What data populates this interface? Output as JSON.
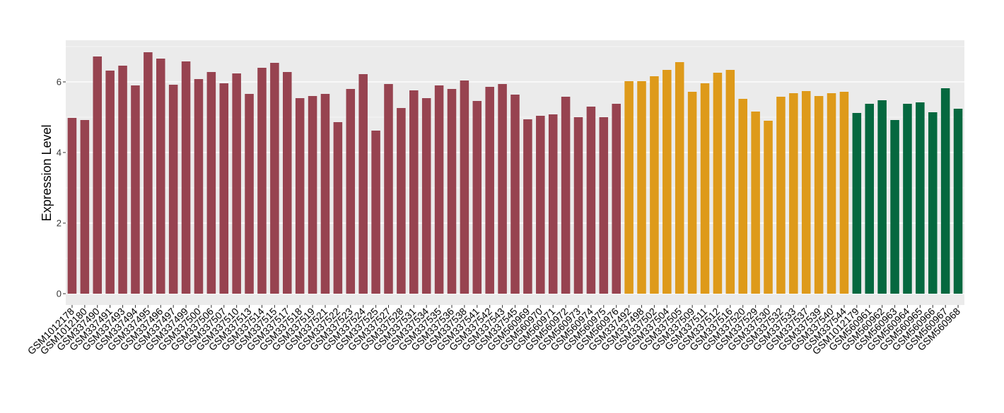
{
  "chart_data": {
    "type": "bar",
    "y_label": "Expression Level",
    "categories": [
      "GSM1012178",
      "GSM1012180",
      "GSM337490",
      "GSM337491",
      "GSM337493",
      "GSM337494",
      "GSM337495",
      "GSM337496",
      "GSM337497",
      "GSM337499",
      "GSM337500",
      "GSM337506",
      "GSM337507",
      "GSM337510",
      "GSM337513",
      "GSM337514",
      "GSM337515",
      "GSM337517",
      "GSM337518",
      "GSM337519",
      "GSM337521",
      "GSM337522",
      "GSM337523",
      "GSM337524",
      "GSM337525",
      "GSM337527",
      "GSM337528",
      "GSM337531",
      "GSM337534",
      "GSM337535",
      "GSM337536",
      "GSM337538",
      "GSM337541",
      "GSM337542",
      "GSM337543",
      "GSM337545",
      "GSM560969",
      "GSM560970",
      "GSM560971",
      "GSM560972",
      "GSM560973",
      "GSM560974",
      "GSM560975",
      "GSM560976",
      "GSM337492",
      "GSM337498",
      "GSM337502",
      "GSM337504",
      "GSM337505",
      "GSM337509",
      "GSM337511",
      "GSM337512",
      "GSM337516",
      "GSM337520",
      "GSM337529",
      "GSM337530",
      "GSM337532",
      "GSM337533",
      "GSM337537",
      "GSM337539",
      "GSM337540",
      "GSM337544",
      "GSM1012179",
      "GSM560961",
      "GSM560962",
      "GSM560963",
      "GSM560964",
      "GSM560965",
      "GSM560966",
      "GSM560967",
      "GSM560968"
    ],
    "values": [
      4.98,
      4.92,
      6.72,
      6.32,
      6.46,
      5.9,
      6.84,
      6.66,
      5.92,
      6.58,
      6.08,
      6.28,
      5.96,
      6.24,
      5.66,
      6.4,
      6.54,
      6.28,
      5.54,
      5.6,
      5.66,
      4.86,
      5.8,
      6.22,
      4.62,
      5.94,
      5.26,
      5.76,
      5.54,
      5.9,
      5.8,
      6.04,
      5.46,
      5.86,
      5.94,
      5.64,
      4.94,
      5.04,
      5.08,
      5.58,
      5.0,
      5.3,
      5.0,
      5.38,
      6.02,
      6.02,
      6.16,
      6.34,
      6.56,
      5.72,
      5.96,
      6.26,
      6.34,
      5.52,
      5.16,
      4.9,
      5.58,
      5.68,
      5.74,
      5.6,
      5.68,
      5.72,
      5.12,
      5.38,
      5.48,
      4.92,
      5.38,
      5.42,
      5.14,
      5.82,
      5.24
    ],
    "colors": [
      "#974350",
      "#974350",
      "#974350",
      "#974350",
      "#974350",
      "#974350",
      "#974350",
      "#974350",
      "#974350",
      "#974350",
      "#974350",
      "#974350",
      "#974350",
      "#974350",
      "#974350",
      "#974350",
      "#974350",
      "#974350",
      "#974350",
      "#974350",
      "#974350",
      "#974350",
      "#974350",
      "#974350",
      "#974350",
      "#974350",
      "#974350",
      "#974350",
      "#974350",
      "#974350",
      "#974350",
      "#974350",
      "#974350",
      "#974350",
      "#974350",
      "#974350",
      "#974350",
      "#974350",
      "#974350",
      "#974350",
      "#974350",
      "#974350",
      "#974350",
      "#974350",
      "#DE9A1A",
      "#DE9A1A",
      "#DE9A1A",
      "#DE9A1A",
      "#DE9A1A",
      "#DE9A1A",
      "#DE9A1A",
      "#DE9A1A",
      "#DE9A1A",
      "#DE9A1A",
      "#DE9A1A",
      "#DE9A1A",
      "#DE9A1A",
      "#DE9A1A",
      "#DE9A1A",
      "#DE9A1A",
      "#DE9A1A",
      "#DE9A1A",
      "#05683F",
      "#05683F",
      "#05683F",
      "#05683F",
      "#05683F",
      "#05683F",
      "#05683F",
      "#05683F",
      "#05683F"
    ],
    "ylim": [
      -0.32,
      7.18
    ],
    "yticks": [
      0,
      2,
      4,
      6
    ],
    "minor_yticks": [
      1,
      3,
      5,
      7
    ],
    "grid": true
  }
}
